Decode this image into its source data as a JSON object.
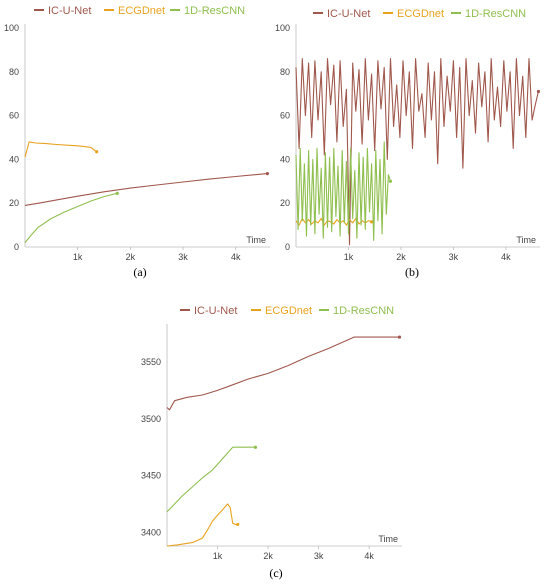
{
  "colors": {
    "IC-U-Net": "#a0584c",
    "ECGDnet": "#e8a31e",
    "1D-ResCNN": "#8fbf4e"
  },
  "chart_data": [
    {
      "type": "line",
      "caption": "(a)",
      "xlabel": "Time",
      "xlim": [
        0,
        4650
      ],
      "ylim": [
        0,
        100
      ],
      "x_ticks": [
        1000,
        2000,
        3000,
        4000
      ],
      "x_tick_labels": [
        "1k",
        "2k",
        "3k",
        "4k"
      ],
      "y_ticks": [
        0,
        20,
        40,
        60,
        80,
        100
      ],
      "y_tick_labels": [
        "0",
        "20",
        "40",
        "60",
        "80",
        "100"
      ],
      "series": [
        {
          "name": "IC-U-Net",
          "x": [
            0,
            300,
            600,
            1000,
            1500,
            2000,
            2500,
            3000,
            3500,
            4000,
            4600
          ],
          "y": [
            19,
            20.2,
            21.5,
            23.2,
            25.2,
            26.9,
            28.3,
            29.7,
            31.0,
            32.2,
            33.5
          ]
        },
        {
          "name": "ECGDnet",
          "x": [
            0,
            80,
            200,
            400,
            600,
            800,
            1000,
            1150,
            1250,
            1330,
            1360
          ],
          "y": [
            41,
            48,
            47.5,
            47.2,
            46.8,
            46.5,
            46.2,
            45.8,
            45.5,
            44,
            43.5
          ]
        },
        {
          "name": "1D-ResCNN",
          "x": [
            0,
            100,
            250,
            500,
            750,
            1000,
            1250,
            1500,
            1750
          ],
          "y": [
            2,
            5,
            9,
            13,
            16,
            18.5,
            21,
            23,
            24.5
          ]
        }
      ]
    },
    {
      "type": "line",
      "caption": "(b)",
      "xlabel": "Time",
      "xlim": [
        0,
        4650
      ],
      "ylim": [
        0,
        100
      ],
      "x_ticks": [
        1000,
        2000,
        3000,
        4000
      ],
      "x_tick_labels": [
        "1k",
        "2k",
        "3k",
        "4k"
      ],
      "y_ticks": [
        0,
        20,
        40,
        60,
        80,
        100
      ],
      "y_tick_labels": [
        "0",
        "20",
        "40",
        "60",
        "80",
        "100"
      ],
      "series": [
        {
          "name": "IC-U-Net",
          "x": [
            0,
            60,
            120,
            180,
            240,
            300,
            360,
            420,
            480,
            540,
            600,
            660,
            720,
            780,
            840,
            900,
            960,
            1020,
            1080,
            1140,
            1200,
            1260,
            1320,
            1380,
            1440,
            1500,
            1560,
            1620,
            1680,
            1740,
            1800,
            1860,
            1920,
            1980,
            2040,
            2100,
            2160,
            2220,
            2280,
            2340,
            2400,
            2460,
            2520,
            2580,
            2640,
            2700,
            2760,
            2820,
            2880,
            2940,
            3000,
            3060,
            3120,
            3180,
            3240,
            3300,
            3360,
            3420,
            3480,
            3540,
            3600,
            3660,
            3720,
            3780,
            3840,
            3900,
            3960,
            4020,
            4080,
            4140,
            4200,
            4260,
            4320,
            4380,
            4440,
            4500,
            4560,
            4620
          ],
          "y": [
            82,
            45,
            86,
            60,
            84,
            50,
            85,
            58,
            80,
            42,
            86,
            65,
            83,
            48,
            85,
            55,
            72,
            1,
            84,
            62,
            81,
            47,
            86,
            58,
            79,
            44,
            85,
            63,
            82,
            40,
            86,
            55,
            74,
            50,
            85,
            60,
            80,
            45,
            86,
            62,
            70,
            50,
            84,
            58,
            80,
            38,
            86,
            55,
            78,
            62,
            85,
            50,
            82,
            36,
            86,
            60,
            76,
            52,
            84,
            64,
            80,
            48,
            86,
            58,
            73,
            55,
            85,
            62,
            80,
            45,
            86,
            60,
            78,
            50,
            86,
            58,
            65,
            71
          ]
        },
        {
          "name": "ECGDnet",
          "x": [
            0,
            60,
            120,
            180,
            240,
            300,
            360,
            420,
            480,
            540,
            600,
            660,
            720,
            780,
            840,
            900,
            960,
            1020,
            1080,
            1140,
            1200,
            1260,
            1320,
            1380,
            1440
          ],
          "y": [
            12,
            10,
            13,
            11,
            12.5,
            10.5,
            12,
            11,
            13,
            10,
            12,
            11.5,
            10.5,
            12.5,
            11,
            12,
            10,
            12.5,
            11,
            13,
            10.5,
            12,
            11,
            12,
            11.5
          ]
        },
        {
          "name": "1D-ResCNN",
          "x": [
            0,
            40,
            80,
            120,
            160,
            200,
            240,
            280,
            320,
            360,
            400,
            440,
            480,
            520,
            560,
            600,
            640,
            680,
            720,
            760,
            800,
            840,
            880,
            920,
            960,
            1000,
            1040,
            1080,
            1120,
            1160,
            1200,
            1240,
            1280,
            1320,
            1360,
            1400,
            1440,
            1480,
            1520,
            1560,
            1600,
            1640,
            1680,
            1720,
            1760,
            1800
          ],
          "y": [
            42,
            8,
            45,
            12,
            38,
            5,
            44,
            10,
            40,
            6,
            45,
            15,
            36,
            4,
            43,
            9,
            41,
            7,
            45,
            14,
            37,
            5,
            44,
            11,
            39,
            6,
            45,
            13,
            35,
            4,
            43,
            10,
            41,
            8,
            45,
            16,
            38,
            3,
            44,
            12,
            40,
            6,
            48,
            15,
            33,
            30
          ]
        }
      ]
    },
    {
      "type": "line",
      "caption": "(c)",
      "xlabel": "Time",
      "xlim": [
        0,
        4650
      ],
      "ylim": [
        3388,
        3580
      ],
      "x_ticks": [
        1000,
        2000,
        3000,
        4000
      ],
      "x_tick_labels": [
        "1k",
        "2k",
        "3k",
        "4k"
      ],
      "y_ticks": [
        3400,
        3450,
        3500,
        3550
      ],
      "y_tick_labels": [
        "3400",
        "3450",
        "3500",
        "3550"
      ],
      "series": [
        {
          "name": "IC-U-Net",
          "x": [
            0,
            50,
            150,
            400,
            700,
            1000,
            1300,
            1600,
            2000,
            2400,
            2800,
            3200,
            3500,
            3700,
            4000,
            4300,
            4600
          ],
          "y": [
            3510,
            3508,
            3516,
            3519,
            3521,
            3525,
            3530,
            3535,
            3540,
            3547,
            3555,
            3562,
            3568,
            3572,
            3572,
            3572,
            3572
          ]
        },
        {
          "name": "ECGDnet",
          "x": [
            0,
            200,
            500,
            700,
            800,
            900,
            1000,
            1100,
            1200,
            1250,
            1300,
            1350,
            1400
          ],
          "y": [
            3388,
            3389,
            3391,
            3395,
            3402,
            3410,
            3415,
            3420,
            3425,
            3422,
            3408,
            3407,
            3407
          ]
        },
        {
          "name": "1D-ResCNN",
          "x": [
            0,
            150,
            300,
            500,
            700,
            900,
            1100,
            1300,
            1500,
            1600,
            1750
          ],
          "y": [
            3418,
            3425,
            3432,
            3440,
            3448,
            3455,
            3465,
            3475,
            3475,
            3475,
            3475
          ]
        }
      ]
    }
  ]
}
